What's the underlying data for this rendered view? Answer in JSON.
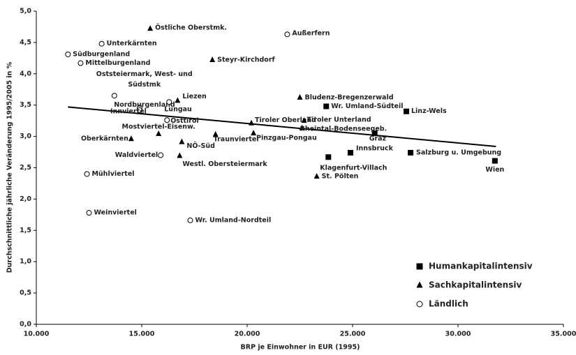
{
  "chart_data": {
    "type": "scatter",
    "x_label": "BRP je Einwohner in EUR (1995)",
    "y_label": "Durchschnittliche jährliche Veränderung 1995/2005 in %",
    "xlim": [
      10000,
      35000
    ],
    "xticks": [
      {
        "value": 10000,
        "label": "10.000"
      },
      {
        "value": 15000,
        "label": "15.000"
      },
      {
        "value": 20000,
        "label": "20.000"
      },
      {
        "value": 25000,
        "label": "25.000"
      },
      {
        "value": 30000,
        "label": "30.000"
      },
      {
        "value": 35000,
        "label": "35.000"
      }
    ],
    "ylim": [
      0,
      5
    ],
    "yticks": [
      {
        "value": 0,
        "label": "0,0"
      },
      {
        "value": 0.5,
        "label": "0,5"
      },
      {
        "value": 1,
        "label": "1,0"
      },
      {
        "value": 1.5,
        "label": "1,5"
      },
      {
        "value": 2,
        "label": "2,0"
      },
      {
        "value": 2.5,
        "label": "2,5"
      },
      {
        "value": 3,
        "label": "3,0"
      },
      {
        "value": 3.5,
        "label": "3,5"
      },
      {
        "value": 4,
        "label": "4,0"
      },
      {
        "value": 4.5,
        "label": "4,5"
      },
      {
        "value": 5,
        "label": "5,0"
      }
    ],
    "legend": "lower right",
    "series": [
      {
        "name": "Humankapitalintensiv",
        "marker": "square",
        "color": "#000000",
        "labels": [
          "Wr. Umland-Südteil",
          "Linz-Wels",
          "Graz",
          "Innsbruck",
          "Klagenfurt-Villach",
          "Salzburg u. Umgebung",
          "Wien"
        ],
        "x": [
          23750,
          27550,
          26050,
          24900,
          23850,
          27750,
          31750
        ],
        "values": [
          3.48,
          3.4,
          3.05,
          2.74,
          2.67,
          2.74,
          2.61
        ]
      },
      {
        "name": "Sachkapitalintensiv",
        "marker": "triangle",
        "color": "#000000",
        "labels": [
          "Östliche Oberstmk.",
          "Steyr-Kirchdorf",
          "Bludenz-Bregenzerwald",
          "Liezen",
          "Tiroler Oberland",
          "Tiroler Unterland",
          "Rheintal-Bodenseegeb.",
          "Mostviertel-Eisenw.",
          "Traunviertel",
          "Pinzgau-Pongau",
          "Oberkärnten",
          "NÖ-Süd",
          "Westl. Obersteiermark",
          "St. Pölten"
        ],
        "x": [
          15400,
          18350,
          22500,
          16700,
          20200,
          22700,
          22600,
          15800,
          18500,
          20300,
          14500,
          16900,
          16800,
          23300
        ],
        "values": [
          4.72,
          4.22,
          3.62,
          3.57,
          3.21,
          3.25,
          3.13,
          3.04,
          3.03,
          3.05,
          2.96,
          2.91,
          2.69,
          2.36
        ]
      },
      {
        "name": "Ländlich",
        "marker": "circle",
        "color": "#000000",
        "labels": [
          "Außerfern",
          "Unterkärnten",
          "Südburgenland",
          "Mittelburgenland",
          "Oststeiermark, West- und Südstmk",
          "Nordburgenland",
          "Innviertel",
          "Lungau",
          "Osttirol",
          "Waldviertel",
          "Mühlviertel",
          "Weinviertel",
          "Wr. Umland-Nordteil"
        ],
        "x": [
          21900,
          13100,
          11500,
          12100,
          13700,
          14900,
          14900,
          16300,
          16200,
          15900,
          12400,
          12500,
          17300
        ],
        "values": [
          4.63,
          4.48,
          4.31,
          4.17,
          3.65,
          3.46,
          3.42,
          3.55,
          3.26,
          2.7,
          2.4,
          1.78,
          1.66
        ]
      }
    ],
    "trendline": {
      "x": [
        11500,
        31800
      ],
      "values": [
        3.47,
        2.84
      ]
    }
  }
}
